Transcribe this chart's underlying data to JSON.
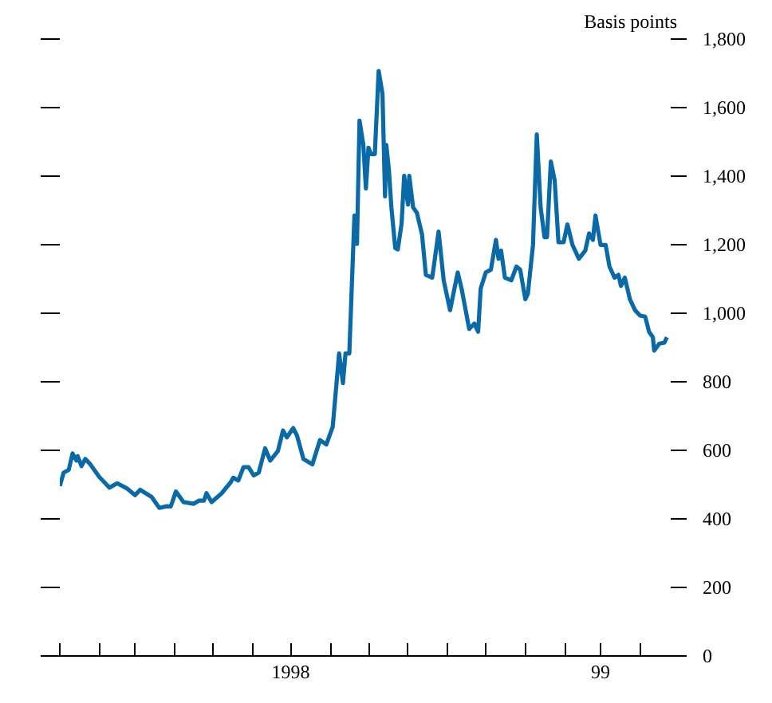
{
  "chart_data": {
    "type": "line",
    "ylabel": "Basis points",
    "x": [
      "1998-01-01",
      "1998-01-04",
      "1998-01-08",
      "1998-01-11",
      "1998-01-14",
      "1998-01-15",
      "1998-01-18",
      "1998-01-21",
      "1998-01-25",
      "1998-02-01",
      "1998-02-09",
      "1998-02-15",
      "1998-02-23",
      "1998-03-01",
      "1998-03-05",
      "1998-03-14",
      "1998-03-20",
      "1998-03-26",
      "1998-03-29",
      "1998-04-02",
      "1998-04-08",
      "1998-04-16",
      "1998-04-20",
      "1998-04-24",
      "1998-04-26",
      "1998-04-30",
      "1998-05-08",
      "1998-05-15",
      "1998-05-17",
      "1998-05-21",
      "1998-05-25",
      "1998-05-29",
      "1998-06-02",
      "1998-06-06",
      "1998-06-11",
      "1998-06-15",
      "1998-06-21",
      "1998-06-25",
      "1998-06-28",
      "1998-07-03",
      "1998-07-06",
      "1998-07-11",
      "1998-07-18",
      "1998-07-24",
      "1998-07-29",
      "1998-08-03",
      "1998-08-08",
      "1998-08-11",
      "1998-08-13",
      "1998-08-16",
      "1998-08-20",
      "1998-08-22",
      "1998-08-24",
      "1998-08-27",
      "1998-08-29",
      "1998-08-31",
      "1998-09-02",
      "1998-09-05",
      "1998-09-08",
      "1998-09-11",
      "1998-09-13",
      "1998-09-14",
      "1998-09-16",
      "1998-09-18",
      "1998-09-21",
      "1998-09-23",
      "1998-09-26",
      "1998-09-28",
      "1998-10-01",
      "1998-10-02",
      "1998-10-05",
      "1998-10-08",
      "1998-10-12",
      "1998-10-15",
      "1998-10-20",
      "1998-10-25",
      "1998-10-29",
      "1998-11-03",
      "1998-11-09",
      "1998-11-12",
      "1998-11-18",
      "1998-11-22",
      "1998-11-25",
      "1998-11-27",
      "1998-12-01",
      "1998-12-05",
      "1998-12-09",
      "1998-12-11",
      "1998-12-13",
      "1998-12-16",
      "1998-12-21",
      "1998-12-25",
      "1998-12-28",
      "1999-01-01",
      "1999-01-03",
      "1999-01-07",
      "1999-01-10",
      "1999-01-13",
      "1999-01-16",
      "1999-01-18",
      "1999-01-21",
      "1999-01-24",
      "1999-01-27",
      "1999-01-31",
      "1999-02-03",
      "1999-02-07",
      "1999-02-12",
      "1999-02-17",
      "1999-02-20",
      "1999-02-23",
      "1999-02-25",
      "1999-03-01",
      "1999-03-05",
      "1999-03-08",
      "1999-03-12",
      "1999-03-15",
      "1999-03-17",
      "1999-03-20",
      "1999-03-24",
      "1999-03-28",
      "1999-04-01",
      "1999-04-05",
      "1999-04-08",
      "1999-04-11",
      "1999-04-12",
      "1999-04-16",
      "1999-04-20",
      "1999-04-22"
    ],
    "series": [
      {
        "color": "#0a6aa8",
        "values": [
          496,
          535,
          543,
          591,
          570,
          583,
          554,
          575,
          559,
          522,
          491,
          504,
          488,
          469,
          485,
          464,
          432,
          437,
          436,
          480,
          449,
          444,
          453,
          453,
          475,
          449,
          475,
          507,
          520,
          512,
          551,
          551,
          527,
          535,
          606,
          570,
          598,
          658,
          638,
          665,
          643,
          575,
          559,
          630,
          617,
          669,
          883,
          796,
          883,
          883,
          1285,
          1202,
          1562,
          1491,
          1364,
          1483,
          1464,
          1464,
          1707,
          1640,
          1341,
          1491,
          1420,
          1309,
          1190,
          1186,
          1262,
          1401,
          1317,
          1401,
          1309,
          1293,
          1230,
          1112,
          1104,
          1238,
          1096,
          1009,
          1119,
          1072,
          954,
          970,
          946,
          1072,
          1119,
          1127,
          1214,
          1159,
          1183,
          1104,
          1096,
          1136,
          1127,
          1041,
          1057,
          1199,
          1522,
          1309,
          1222,
          1222,
          1443,
          1388,
          1207,
          1207,
          1259,
          1199,
          1159,
          1183,
          1233,
          1214,
          1285,
          1199,
          1199,
          1136,
          1104,
          1112,
          1080,
          1104,
          1041,
          1009,
          993,
          990,
          946,
          930,
          891,
          911,
          914,
          930
        ]
      }
    ],
    "xlim": [
      "1998-01-01",
      "1999-04-25"
    ],
    "xticks": [
      {
        "value": "1998-01-01",
        "label": null
      },
      {
        "value": "1998-02-01",
        "label": null
      },
      {
        "value": "1998-03-01",
        "label": null
      },
      {
        "value": "1998-04-01",
        "label": null
      },
      {
        "value": "1998-05-01",
        "label": null
      },
      {
        "value": "1998-06-01",
        "label": null
      },
      {
        "value": "1998-07-01",
        "label": "1998"
      },
      {
        "value": "1998-08-01",
        "label": null
      },
      {
        "value": "1998-09-01",
        "label": null
      },
      {
        "value": "1998-10-01",
        "label": null
      },
      {
        "value": "1998-11-01",
        "label": null
      },
      {
        "value": "1998-12-01",
        "label": null
      },
      {
        "value": "1999-01-01",
        "label": null
      },
      {
        "value": "1999-02-01",
        "label": null
      },
      {
        "value": "1999-03-01",
        "label": "99"
      },
      {
        "value": "1999-04-01",
        "label": null
      }
    ],
    "ylim": [
      0,
      1800
    ],
    "yticks": [
      0,
      200,
      400,
      600,
      800,
      {
        "value": 1000,
        "label": "1,000"
      },
      {
        "value": 1200,
        "label": "1,200"
      },
      {
        "value": 1400,
        "label": "1,400"
      },
      {
        "value": 1600,
        "label": "1,600"
      },
      {
        "value": 1800,
        "label": "1,800"
      }
    ],
    "grid": false,
    "line_style": "solid",
    "marker": "none"
  }
}
